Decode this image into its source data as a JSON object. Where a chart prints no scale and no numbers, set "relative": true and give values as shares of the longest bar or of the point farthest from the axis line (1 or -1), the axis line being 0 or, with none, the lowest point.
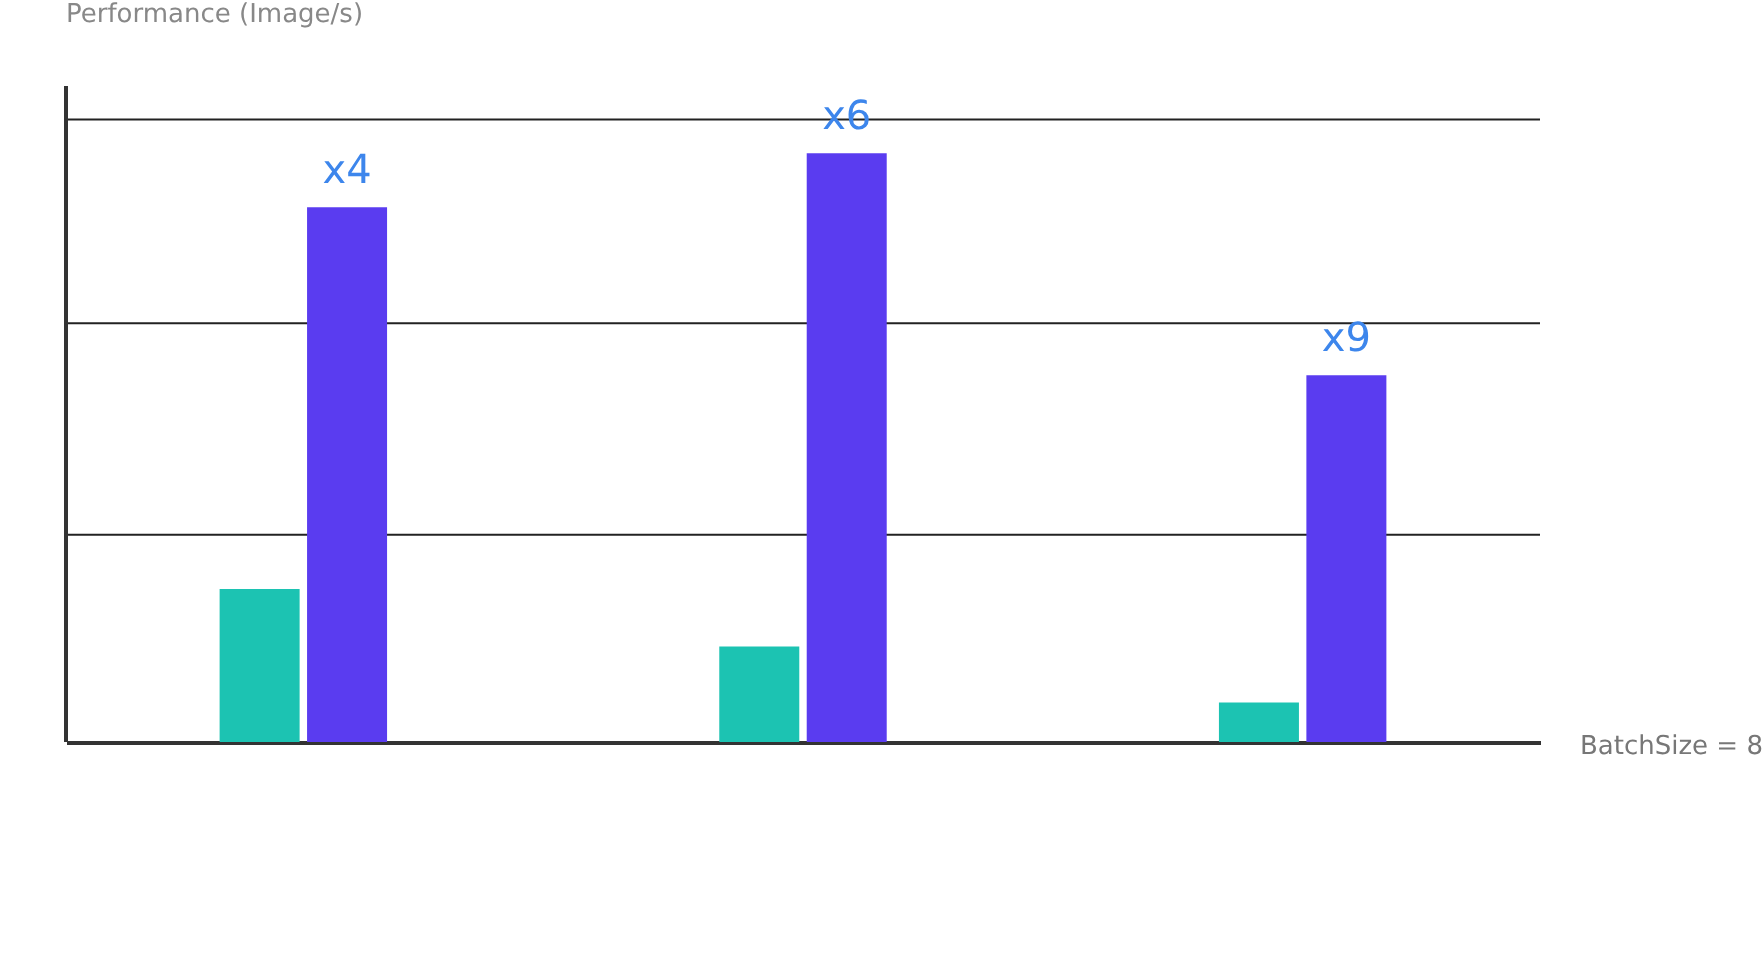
{
  "chart_data": {
    "type": "bar",
    "relative": true,
    "ylabel": "Performance (Image/s)",
    "xlabel": "BatchSize = 8",
    "categories": [
      null,
      null,
      null
    ],
    "series": [
      {
        "color": "#1cc3b2",
        "values": [
          0.26,
          0.162,
          0.067
        ]
      },
      {
        "color": "#5a3cf0",
        "values": [
          0.908,
          1,
          0.623
        ]
      }
    ],
    "annotations": [
      {
        "text": "x4",
        "y": 0.908
      },
      {
        "text": "x6",
        "y": 1
      },
      {
        "text": "x9",
        "y": 0.623
      }
    ],
    "ref_lines": [
      {
        "axis": "y",
        "value": 0.352,
        "color": "#222222"
      },
      {
        "axis": "y",
        "value": 0.711,
        "color": "#222222"
      },
      {
        "axis": "y",
        "value": 1.057,
        "color": "#222222"
      }
    ]
  }
}
